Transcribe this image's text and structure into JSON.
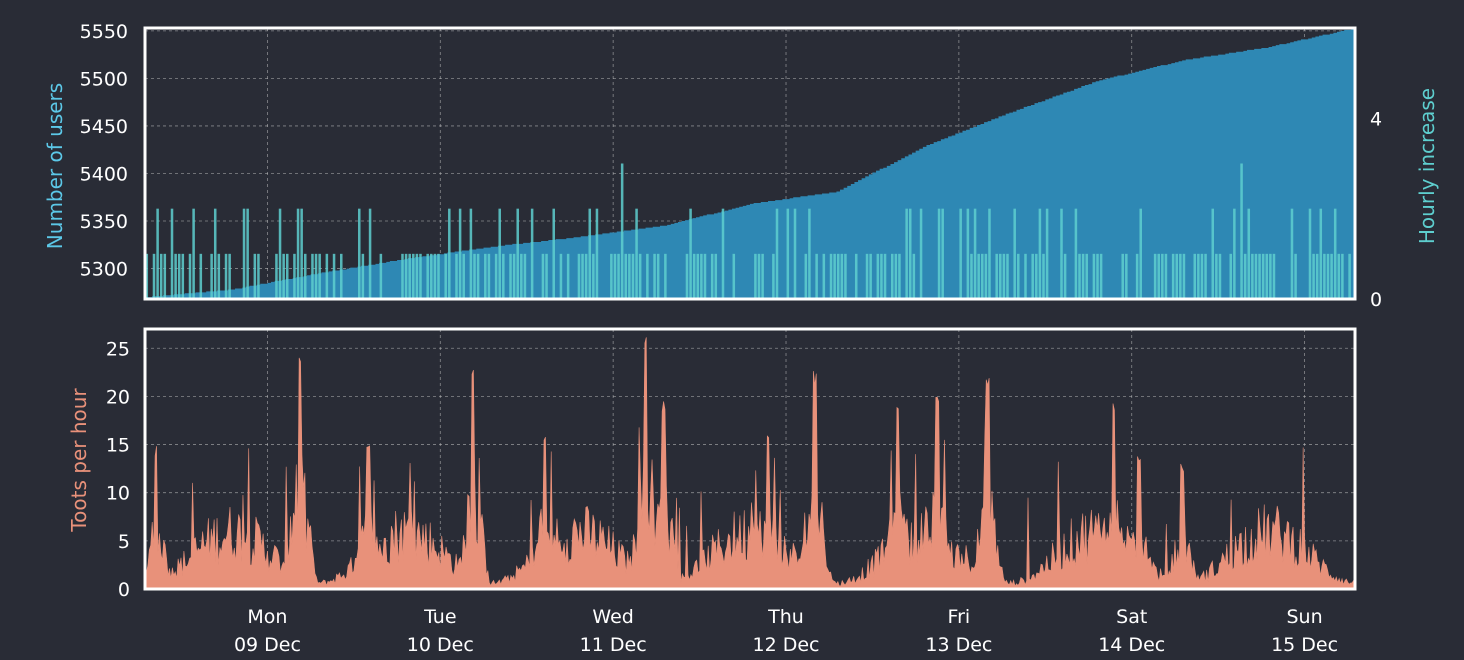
{
  "colors": {
    "background": "#292c36",
    "users_fill": "#2e88b4",
    "hourly_bars": "#5ecfcf",
    "toots_fill": "#e8917a",
    "users_label": "#5cc8e8",
    "hourly_label": "#5ecfcf",
    "toots_label": "#e8917a",
    "frame": "#ffffff"
  },
  "chart_data": [
    {
      "type": "area",
      "id": "users",
      "ylabel": "Number of users",
      "ylim": [
        5268,
        5553
      ],
      "yticks": [
        5300,
        5350,
        5400,
        5450,
        5500,
        5550
      ],
      "y2label": "Hourly increase",
      "y2lim": [
        0,
        6
      ],
      "y2ticks": [
        0,
        4
      ],
      "xlim_hours": [
        0,
        168
      ],
      "grid": true,
      "users_keypoints": [
        {
          "hour": 0,
          "users": 5270
        },
        {
          "hour": 12,
          "users": 5278
        },
        {
          "hour": 24,
          "users": 5295
        },
        {
          "hour": 36,
          "users": 5310
        },
        {
          "hour": 48,
          "users": 5323
        },
        {
          "hour": 60,
          "users": 5333
        },
        {
          "hour": 72,
          "users": 5345
        },
        {
          "hour": 84,
          "users": 5368
        },
        {
          "hour": 96,
          "users": 5381
        },
        {
          "hour": 108,
          "users": 5428
        },
        {
          "hour": 120,
          "users": 5464
        },
        {
          "hour": 132,
          "users": 5497
        },
        {
          "hour": 144,
          "users": 5519
        },
        {
          "hour": 156,
          "users": 5533
        },
        {
          "hour": 168,
          "users": 5553
        }
      ],
      "hourly_increase_peaks": [
        {
          "hour": 6.5,
          "value": 2
        },
        {
          "hour": 21,
          "value": 2
        },
        {
          "hour": 31,
          "value": 2
        },
        {
          "hour": 45,
          "value": 2
        },
        {
          "hour": 66,
          "value": 3
        },
        {
          "hour": 152,
          "value": 3
        }
      ]
    },
    {
      "type": "area",
      "id": "toots",
      "ylabel": "Toots per hour",
      "ylim": [
        0,
        27
      ],
      "yticks": [
        0,
        5,
        10,
        15,
        20,
        25
      ],
      "xlim_hours": [
        0,
        168
      ],
      "grid": true,
      "peaks": [
        {
          "hour": 1.5,
          "value": 15
        },
        {
          "hour": 21.5,
          "value": 25
        },
        {
          "hour": 31,
          "value": 16
        },
        {
          "hour": 45.5,
          "value": 24
        },
        {
          "hour": 55.5,
          "value": 16
        },
        {
          "hour": 69.5,
          "value": 27
        },
        {
          "hour": 72,
          "value": 20
        },
        {
          "hour": 86.5,
          "value": 16
        },
        {
          "hour": 93,
          "value": 23
        },
        {
          "hour": 104.5,
          "value": 20
        },
        {
          "hour": 110,
          "value": 20
        },
        {
          "hour": 117,
          "value": 22
        },
        {
          "hour": 134.5,
          "value": 20
        },
        {
          "hour": 138,
          "value": 14
        },
        {
          "hour": 144,
          "value": 13
        }
      ],
      "xtick_hours": [
        17,
        41,
        65,
        89,
        113,
        137,
        161
      ],
      "xtick_days": [
        "Mon",
        "Tue",
        "Wed",
        "Thu",
        "Fri",
        "Sat",
        "Sun"
      ],
      "xtick_dates": [
        "09 Dec",
        "10 Dec",
        "11 Dec",
        "12 Dec",
        "13 Dec",
        "14 Dec",
        "15 Dec"
      ]
    }
  ]
}
